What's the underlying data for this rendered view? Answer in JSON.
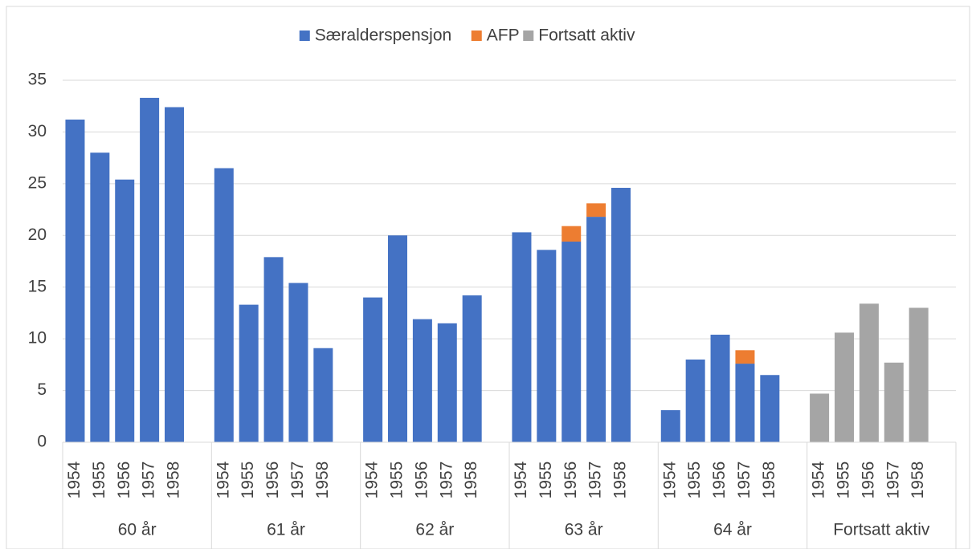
{
  "chart_data": {
    "type": "stacked_bar",
    "groups": [
      "60 år",
      "61 år",
      "62 år",
      "63 år",
      "64 år",
      "Fortsatt aktiv"
    ],
    "categories": [
      "1954",
      "1955",
      "1956",
      "1957",
      "1958",
      "1954",
      "1955",
      "1956",
      "1957",
      "1958",
      "1954",
      "1955",
      "1956",
      "1957",
      "1958",
      "1954",
      "1955",
      "1956",
      "1957",
      "1958",
      "1954",
      "1955",
      "1956",
      "1957",
      "1958",
      "1954",
      "1955",
      "1956",
      "1957",
      "1958"
    ],
    "series": [
      {
        "name": "Særalderspensjon",
        "color": "#4472c4",
        "values": [
          31.2,
          28,
          25.4,
          33.3,
          32.4,
          26.5,
          13.3,
          17.9,
          15.4,
          9.1,
          14,
          20,
          11.9,
          11.5,
          14.2,
          20.3,
          18.6,
          19.4,
          21.8,
          24.6,
          3.1,
          8,
          10.4,
          7.6,
          6.5,
          null,
          null,
          null,
          null,
          null
        ]
      },
      {
        "name": "AFP",
        "color": "#ed7d31",
        "values": [
          null,
          null,
          null,
          null,
          null,
          null,
          null,
          null,
          null,
          null,
          null,
          null,
          null,
          null,
          null,
          null,
          null,
          1.5,
          1.3,
          null,
          null,
          null,
          null,
          1.3,
          null,
          null,
          null,
          null,
          null,
          null
        ]
      },
      {
        "name": "Fortsatt aktiv",
        "color": "#a5a5a5",
        "values": [
          null,
          null,
          null,
          null,
          null,
          null,
          null,
          null,
          null,
          null,
          null,
          null,
          null,
          null,
          null,
          null,
          null,
          null,
          null,
          null,
          null,
          null,
          null,
          null,
          null,
          4.7,
          10.6,
          13.4,
          7.7,
          13
        ]
      }
    ],
    "ylim": [
      0,
      35
    ],
    "yticks": [
      0,
      5,
      10,
      15,
      20,
      25,
      30,
      35
    ],
    "grid": true,
    "legend": "top"
  }
}
